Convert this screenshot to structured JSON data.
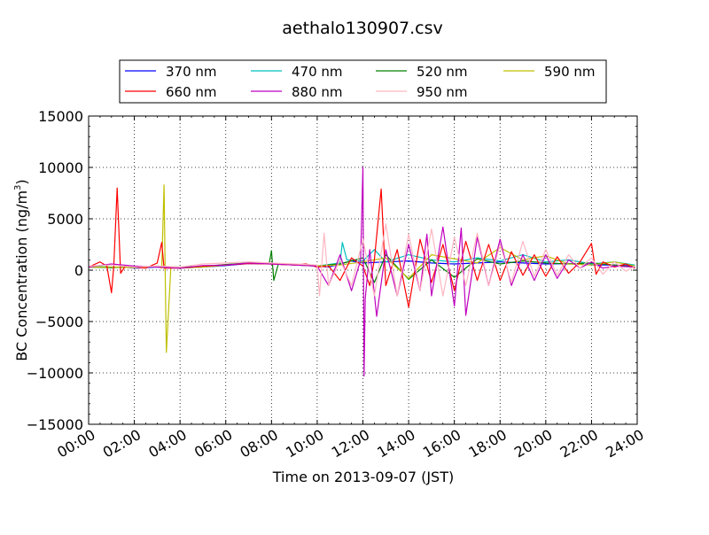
{
  "chart_data": {
    "type": "line",
    "title": "aethalo130907.csv",
    "xlabel": "Time on 2013-09-07 (JST)",
    "ylabel": {
      "prefix": "BC Concentration (ng/m",
      "sup": "3",
      "suffix": ")"
    },
    "xlim": [
      "00:00",
      "24:00"
    ],
    "ylim": [
      -15000,
      15000
    ],
    "x_ticks": [
      "00:00",
      "02:00",
      "04:00",
      "06:00",
      "08:00",
      "10:00",
      "12:00",
      "14:00",
      "16:00",
      "18:00",
      "20:00",
      "22:00",
      "24:00"
    ],
    "y_ticks": [
      "15000",
      "10000",
      "5000",
      "0",
      "−5000",
      "−10000",
      "−15000"
    ],
    "grid": true,
    "grid_style": "dotted",
    "legend_placement": "above-plot",
    "x_unit": "hours since 00:00",
    "series": [
      {
        "name": "370 nm",
        "color": "#0000ff",
        "points": [
          [
            0.0,
            350
          ],
          [
            0.5,
            300
          ],
          [
            1.0,
            250
          ],
          [
            1.5,
            300
          ],
          [
            2.0,
            200
          ],
          [
            3.0,
            300
          ],
          [
            4.0,
            200
          ],
          [
            5.0,
            300
          ],
          [
            6.0,
            450
          ],
          [
            7.0,
            650
          ],
          [
            8.0,
            600
          ],
          [
            9.0,
            500
          ],
          [
            10.0,
            400
          ],
          [
            10.5,
            300
          ],
          [
            11.0,
            600
          ],
          [
            11.5,
            900
          ],
          [
            12.0,
            700
          ],
          [
            13.0,
            800
          ],
          [
            14.0,
            900
          ],
          [
            15.0,
            700
          ],
          [
            16.0,
            600
          ],
          [
            17.0,
            700
          ],
          [
            18.0,
            800
          ],
          [
            19.0,
            700
          ],
          [
            20.0,
            600
          ],
          [
            21.0,
            650
          ],
          [
            22.0,
            500
          ],
          [
            23.0,
            500
          ],
          [
            23.9,
            400
          ]
        ]
      },
      {
        "name": "470 nm",
        "color": "#00bfbf",
        "points": [
          [
            0.0,
            400
          ],
          [
            1.0,
            300
          ],
          [
            2.0,
            250
          ],
          [
            3.0,
            400
          ],
          [
            4.0,
            250
          ],
          [
            5.0,
            350
          ],
          [
            6.0,
            500
          ],
          [
            7.0,
            700
          ],
          [
            8.0,
            650
          ],
          [
            9.0,
            550
          ],
          [
            10.0,
            400
          ],
          [
            11.0,
            700
          ],
          [
            11.1,
            2700
          ],
          [
            11.3,
            1000
          ],
          [
            12.0,
            900
          ],
          [
            12.5,
            2000
          ],
          [
            13.0,
            800
          ],
          [
            14.0,
            1500
          ],
          [
            15.0,
            1000
          ],
          [
            16.0,
            800
          ],
          [
            17.0,
            1200
          ],
          [
            18.0,
            900
          ],
          [
            19.0,
            1500
          ],
          [
            20.0,
            800
          ],
          [
            21.0,
            1000
          ],
          [
            22.0,
            600
          ],
          [
            23.0,
            800
          ],
          [
            23.9,
            500
          ]
        ]
      },
      {
        "name": "520 nm",
        "color": "#008000",
        "points": [
          [
            0.0,
            300
          ],
          [
            1.0,
            250
          ],
          [
            2.0,
            300
          ],
          [
            3.0,
            350
          ],
          [
            4.0,
            300
          ],
          [
            5.0,
            350
          ],
          [
            6.0,
            550
          ],
          [
            7.0,
            700
          ],
          [
            7.9,
            650
          ],
          [
            8.0,
            1900
          ],
          [
            8.1,
            -1000
          ],
          [
            8.3,
            600
          ],
          [
            9.0,
            550
          ],
          [
            10.0,
            400
          ],
          [
            11.0,
            600
          ],
          [
            12.0,
            1200
          ],
          [
            12.5,
            -1200
          ],
          [
            13.0,
            1500
          ],
          [
            14.0,
            -900
          ],
          [
            15.0,
            1000
          ],
          [
            16.0,
            -700
          ],
          [
            17.0,
            1100
          ],
          [
            18.0,
            600
          ],
          [
            19.0,
            900
          ],
          [
            20.0,
            700
          ],
          [
            21.0,
            600
          ],
          [
            22.0,
            700
          ],
          [
            23.0,
            500
          ],
          [
            23.9,
            300
          ]
        ]
      },
      {
        "name": "590 nm",
        "color": "#bfbf00",
        "points": [
          [
            0.0,
            300
          ],
          [
            1.0,
            300
          ],
          [
            2.0,
            250
          ],
          [
            3.0,
            400
          ],
          [
            3.2,
            200
          ],
          [
            3.3,
            8300
          ],
          [
            3.35,
            -300
          ],
          [
            3.4,
            -8000
          ],
          [
            3.6,
            300
          ],
          [
            4.0,
            200
          ],
          [
            5.0,
            300
          ],
          [
            6.0,
            500
          ],
          [
            7.0,
            700
          ],
          [
            8.0,
            600
          ],
          [
            9.0,
            500
          ],
          [
            10.0,
            400
          ],
          [
            11.0,
            500
          ],
          [
            12.0,
            800
          ],
          [
            13.0,
            1200
          ],
          [
            14.0,
            -800
          ],
          [
            15.0,
            1500
          ],
          [
            16.0,
            1100
          ],
          [
            17.0,
            700
          ],
          [
            18.0,
            2200
          ],
          [
            19.0,
            1000
          ],
          [
            20.0,
            1400
          ],
          [
            21.0,
            600
          ],
          [
            22.0,
            500
          ],
          [
            23.0,
            800
          ],
          [
            23.9,
            400
          ]
        ]
      },
      {
        "name": "660 nm",
        "color": "#ff0000",
        "points": [
          [
            0.0,
            300
          ],
          [
            0.5,
            800
          ],
          [
            0.8,
            400
          ],
          [
            1.0,
            -2200
          ],
          [
            1.1,
            400
          ],
          [
            1.25,
            8000
          ],
          [
            1.4,
            -300
          ],
          [
            1.6,
            400
          ],
          [
            2.0,
            300
          ],
          [
            2.5,
            200
          ],
          [
            3.0,
            700
          ],
          [
            3.2,
            2700
          ],
          [
            3.3,
            200
          ],
          [
            4.0,
            200
          ],
          [
            5.0,
            400
          ],
          [
            6.0,
            500
          ],
          [
            7.0,
            650
          ],
          [
            8.0,
            600
          ],
          [
            9.0,
            500
          ],
          [
            9.5,
            600
          ],
          [
            10.0,
            300
          ],
          [
            10.5,
            400
          ],
          [
            11.0,
            -1000
          ],
          [
            11.5,
            1200
          ],
          [
            12.0,
            400
          ],
          [
            12.3,
            -1500
          ],
          [
            12.5,
            1000
          ],
          [
            12.8,
            7900
          ],
          [
            13.0,
            -1500
          ],
          [
            13.5,
            2000
          ],
          [
            14.0,
            -3600
          ],
          [
            14.5,
            3000
          ],
          [
            15.0,
            -1200
          ],
          [
            15.5,
            2500
          ],
          [
            16.0,
            -2000
          ],
          [
            16.5,
            2800
          ],
          [
            17.0,
            -1000
          ],
          [
            17.5,
            2500
          ],
          [
            18.0,
            -1000
          ],
          [
            18.5,
            1800
          ],
          [
            19.0,
            -500
          ],
          [
            19.5,
            1500
          ],
          [
            20.0,
            -600
          ],
          [
            20.5,
            1300
          ],
          [
            21.0,
            -300
          ],
          [
            21.5,
            800
          ],
          [
            22.0,
            2600
          ],
          [
            22.2,
            -400
          ],
          [
            22.5,
            800
          ],
          [
            23.0,
            300
          ],
          [
            23.5,
            600
          ],
          [
            23.9,
            200
          ]
        ]
      },
      {
        "name": "880 nm",
        "color": "#bf00bf",
        "points": [
          [
            0.0,
            300
          ],
          [
            1.0,
            600
          ],
          [
            2.0,
            400
          ],
          [
            3.0,
            300
          ],
          [
            4.0,
            200
          ],
          [
            5.0,
            450
          ],
          [
            6.0,
            500
          ],
          [
            7.0,
            700
          ],
          [
            8.0,
            600
          ],
          [
            9.0,
            500
          ],
          [
            10.0,
            400
          ],
          [
            10.5,
            -1500
          ],
          [
            11.0,
            1500
          ],
          [
            11.5,
            -2000
          ],
          [
            11.9,
            1000
          ],
          [
            12.0,
            10000
          ],
          [
            12.05,
            -10300
          ],
          [
            12.1,
            -2800
          ],
          [
            12.3,
            2000
          ],
          [
            12.6,
            -4500
          ],
          [
            13.0,
            2000
          ],
          [
            13.5,
            -2500
          ],
          [
            14.0,
            2500
          ],
          [
            14.5,
            -2000
          ],
          [
            14.8,
            3500
          ],
          [
            15.0,
            -2500
          ],
          [
            15.5,
            4200
          ],
          [
            16.0,
            -3500
          ],
          [
            16.3,
            4100
          ],
          [
            16.5,
            -4400
          ],
          [
            17.0,
            3200
          ],
          [
            17.5,
            -1500
          ],
          [
            18.0,
            3000
          ],
          [
            18.5,
            -1500
          ],
          [
            19.0,
            1500
          ],
          [
            19.5,
            -1000
          ],
          [
            20.0,
            1500
          ],
          [
            20.5,
            -800
          ],
          [
            21.0,
            1000
          ],
          [
            21.5,
            200
          ],
          [
            22.0,
            800
          ],
          [
            22.5,
            200
          ],
          [
            23.0,
            400
          ],
          [
            23.9,
            300
          ]
        ]
      },
      {
        "name": "950 nm",
        "color": "#ffb6c1",
        "points": [
          [
            0.0,
            400
          ],
          [
            1.0,
            500
          ],
          [
            2.0,
            300
          ],
          [
            3.0,
            400
          ],
          [
            4.0,
            300
          ],
          [
            5.0,
            600
          ],
          [
            6.0,
            700
          ],
          [
            7.0,
            800
          ],
          [
            8.0,
            700
          ],
          [
            9.0,
            600
          ],
          [
            10.0,
            500
          ],
          [
            10.1,
            -2500
          ],
          [
            10.3,
            3600
          ],
          [
            10.5,
            -1500
          ],
          [
            11.0,
            1000
          ],
          [
            11.5,
            -1500
          ],
          [
            12.0,
            3000
          ],
          [
            12.5,
            -2500
          ],
          [
            13.0,
            4500
          ],
          [
            13.5,
            -2500
          ],
          [
            14.0,
            3500
          ],
          [
            14.5,
            -2000
          ],
          [
            15.0,
            4000
          ],
          [
            15.5,
            -2500
          ],
          [
            16.0,
            3200
          ],
          [
            16.5,
            -1500
          ],
          [
            17.0,
            3600
          ],
          [
            17.5,
            -1500
          ],
          [
            18.0,
            2500
          ],
          [
            18.5,
            -1200
          ],
          [
            19.0,
            2800
          ],
          [
            19.5,
            -600
          ],
          [
            20.0,
            2000
          ],
          [
            20.5,
            -500
          ],
          [
            21.0,
            1500
          ],
          [
            21.5,
            200
          ],
          [
            22.0,
            1200
          ],
          [
            22.5,
            -400
          ],
          [
            23.0,
            800
          ],
          [
            23.5,
            -100
          ],
          [
            23.9,
            400
          ]
        ]
      }
    ]
  }
}
